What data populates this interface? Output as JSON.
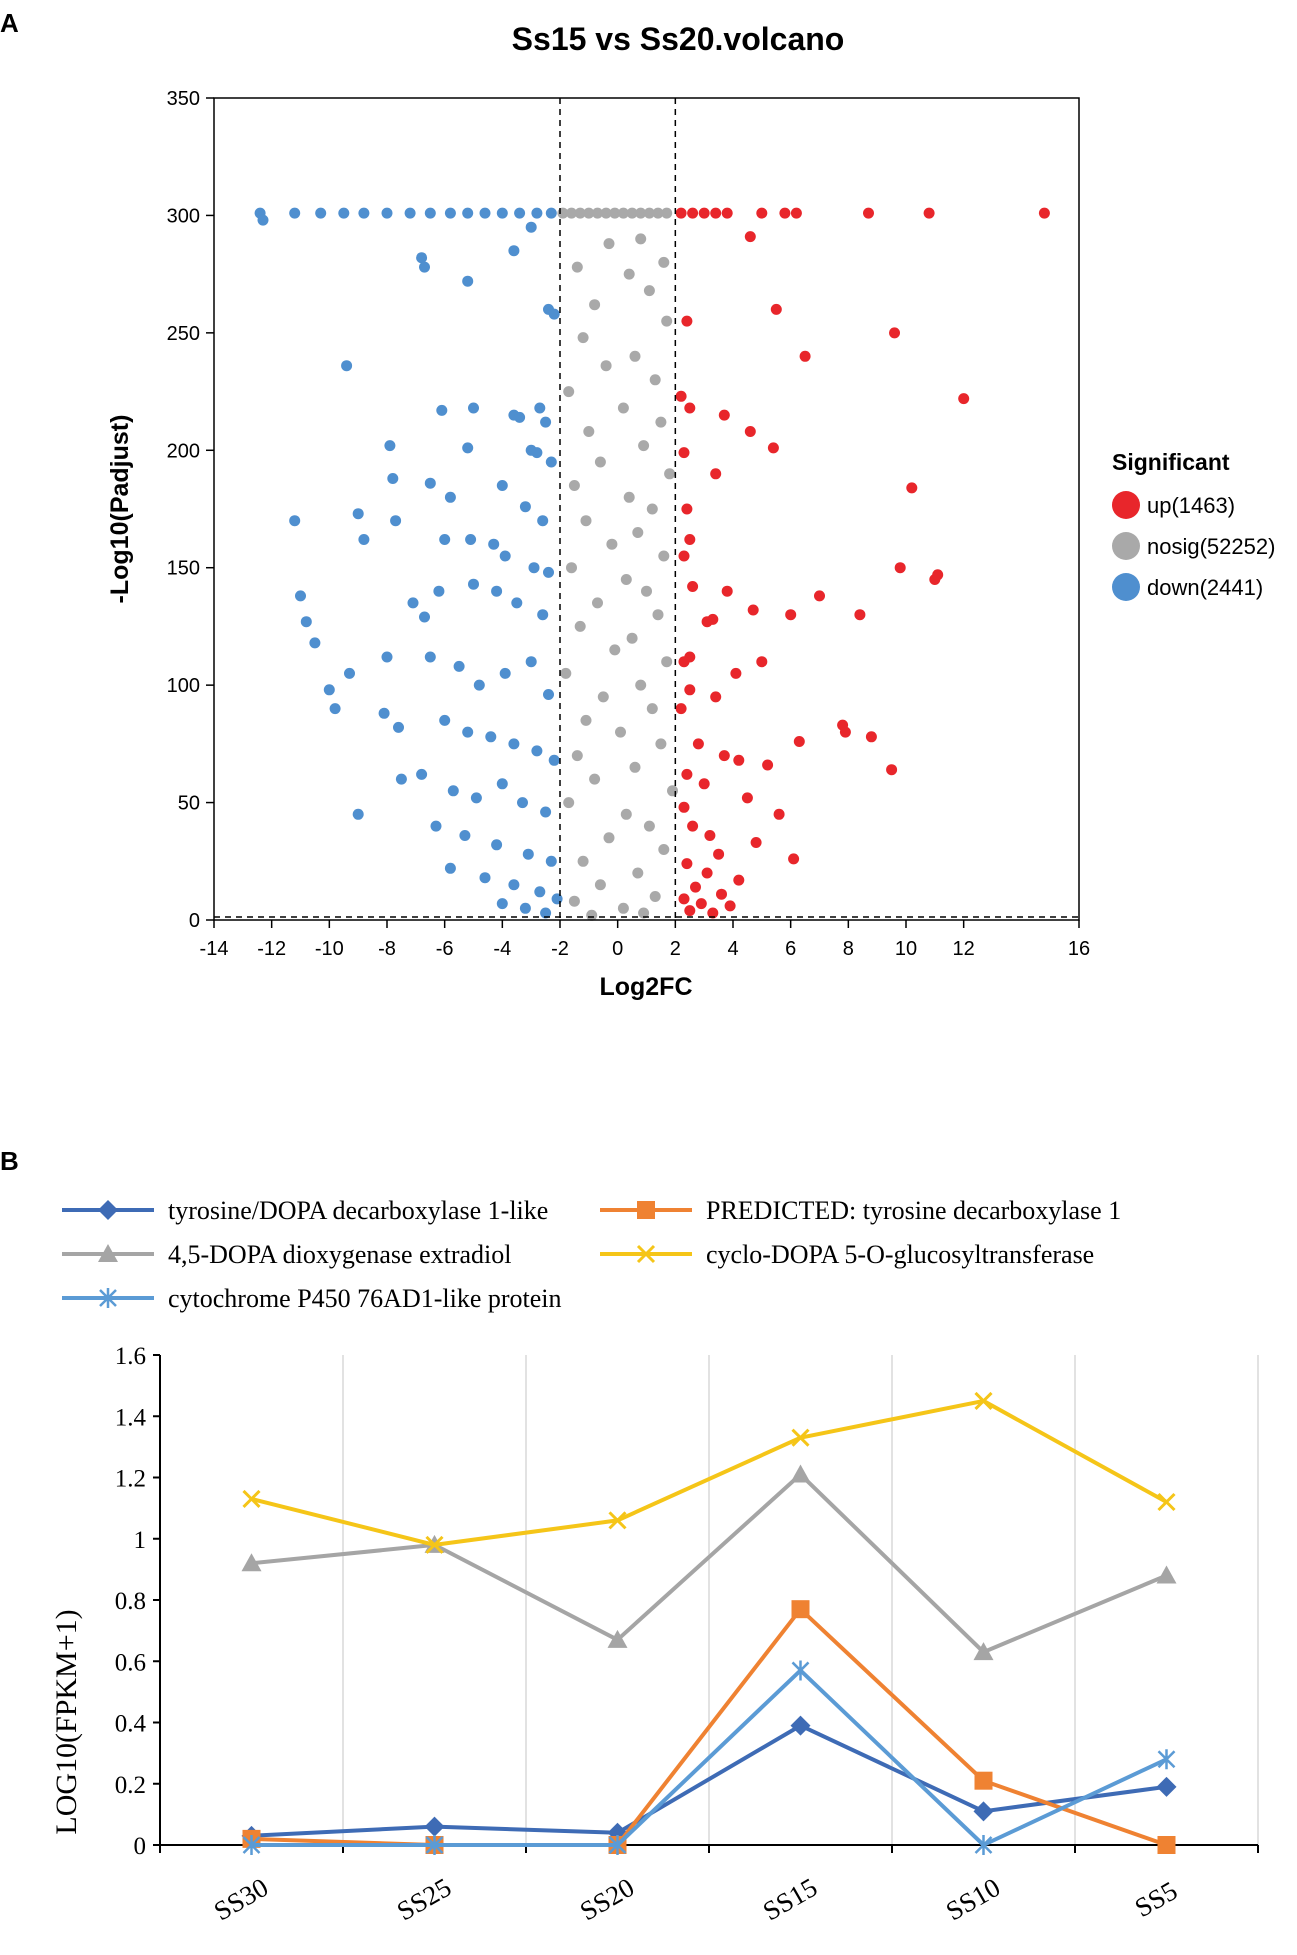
{
  "chart_data": [
    {
      "panel_label": "A",
      "type": "scatter",
      "title": "Ss15 vs Ss20.volcano",
      "xlabel": "Log2FC",
      "ylabel": "-Log10(Padjust)",
      "xlim": [
        -14,
        16
      ],
      "ylim": [
        0,
        350
      ],
      "xticks": [
        "-14",
        "-12",
        "-10",
        "-8",
        "-6",
        "-4",
        "-2",
        "0",
        "2",
        "4",
        "6",
        "8",
        "10",
        "12",
        "16"
      ],
      "yticks": [
        "0",
        "50",
        "100",
        "150",
        "200",
        "250",
        "300",
        "350"
      ],
      "thresholds": {
        "log2fc": [
          -2,
          2
        ],
        "neg_log10_padj": 1.3
      },
      "legend": {
        "title": "Significant",
        "items": [
          {
            "label": "up(1463)",
            "color": "#e8262b"
          },
          {
            "label": "nosig(52252)",
            "color": "#a9a9a9"
          },
          {
            "label": "down(2441)",
            "color": "#4f8fcf"
          }
        ]
      },
      "series": [
        {
          "name": "up",
          "color": "#e8262b",
          "points": [
            [
              2.2,
              301
            ],
            [
              2.6,
              301
            ],
            [
              3.0,
              301
            ],
            [
              3.4,
              301
            ],
            [
              3.8,
              301
            ],
            [
              5.0,
              301
            ],
            [
              5.8,
              301
            ],
            [
              6.2,
              301
            ],
            [
              8.7,
              301
            ],
            [
              10.8,
              301
            ],
            [
              14.8,
              301
            ],
            [
              4.6,
              291
            ],
            [
              5.5,
              260
            ],
            [
              2.4,
              255
            ],
            [
              6.5,
              240
            ],
            [
              9.6,
              250
            ],
            [
              12.0,
              222
            ],
            [
              2.2,
              223
            ],
            [
              2.5,
              218
            ],
            [
              3.7,
              215
            ],
            [
              4.6,
              208
            ],
            [
              5.4,
              201
            ],
            [
              2.3,
              199
            ],
            [
              3.4,
              190
            ],
            [
              10.2,
              184
            ],
            [
              2.4,
              175
            ],
            [
              2.5,
              162
            ],
            [
              2.3,
              155
            ],
            [
              9.8,
              150
            ],
            [
              11.0,
              145
            ],
            [
              11.1,
              147
            ],
            [
              2.6,
              142
            ],
            [
              3.8,
              140
            ],
            [
              7.0,
              138
            ],
            [
              4.7,
              132
            ],
            [
              3.3,
              128
            ],
            [
              3.1,
              127
            ],
            [
              6.0,
              130
            ],
            [
              8.4,
              130
            ],
            [
              2.5,
              112
            ],
            [
              2.3,
              110
            ],
            [
              5.0,
              110
            ],
            [
              4.1,
              105
            ],
            [
              2.5,
              98
            ],
            [
              3.4,
              95
            ],
            [
              2.2,
              90
            ],
            [
              7.8,
              83
            ],
            [
              7.9,
              80
            ],
            [
              8.8,
              78
            ],
            [
              6.3,
              76
            ],
            [
              2.8,
              75
            ],
            [
              3.7,
              70
            ],
            [
              4.2,
              68
            ],
            [
              5.2,
              66
            ],
            [
              9.5,
              64
            ],
            [
              2.4,
              62
            ],
            [
              3.0,
              58
            ],
            [
              4.5,
              52
            ],
            [
              2.3,
              48
            ],
            [
              5.6,
              45
            ],
            [
              2.6,
              40
            ],
            [
              3.2,
              36
            ],
            [
              4.8,
              33
            ],
            [
              3.5,
              28
            ],
            [
              6.1,
              26
            ],
            [
              2.4,
              24
            ],
            [
              3.1,
              20
            ],
            [
              4.2,
              17
            ],
            [
              2.7,
              14
            ],
            [
              3.6,
              11
            ],
            [
              2.3,
              9
            ],
            [
              2.9,
              7
            ],
            [
              3.9,
              6
            ],
            [
              2.5,
              4
            ],
            [
              3.3,
              3
            ]
          ]
        },
        {
          "name": "nosig",
          "color": "#a9a9a9",
          "points": [
            [
              -1.9,
              301
            ],
            [
              -1.6,
              301
            ],
            [
              -1.3,
              301
            ],
            [
              -1.0,
              301
            ],
            [
              -0.7,
              301
            ],
            [
              -0.4,
              301
            ],
            [
              -0.1,
              301
            ],
            [
              0.2,
              301
            ],
            [
              0.5,
              301
            ],
            [
              0.8,
              301
            ],
            [
              1.1,
              301
            ],
            [
              1.4,
              301
            ],
            [
              1.7,
              301
            ],
            [
              0.8,
              290
            ],
            [
              -0.3,
              288
            ],
            [
              1.6,
              280
            ],
            [
              -1.4,
              278
            ],
            [
              0.4,
              275
            ],
            [
              1.1,
              268
            ],
            [
              -0.8,
              262
            ],
            [
              1.7,
              255
            ],
            [
              -1.2,
              248
            ],
            [
              0.6,
              240
            ],
            [
              -0.4,
              236
            ],
            [
              1.3,
              230
            ],
            [
              -1.7,
              225
            ],
            [
              0.2,
              218
            ],
            [
              1.5,
              212
            ],
            [
              -1.0,
              208
            ],
            [
              0.9,
              202
            ],
            [
              -0.6,
              195
            ],
            [
              1.8,
              190
            ],
            [
              -1.5,
              185
            ],
            [
              0.4,
              180
            ],
            [
              1.2,
              175
            ],
            [
              -1.1,
              170
            ],
            [
              0.7,
              165
            ],
            [
              -0.2,
              160
            ],
            [
              1.6,
              155
            ],
            [
              -1.6,
              150
            ],
            [
              0.3,
              145
            ],
            [
              1.0,
              140
            ],
            [
              -0.7,
              135
            ],
            [
              1.4,
              130
            ],
            [
              -1.3,
              125
            ],
            [
              0.5,
              120
            ],
            [
              -0.1,
              115
            ],
            [
              1.7,
              110
            ],
            [
              -1.8,
              105
            ],
            [
              0.8,
              100
            ],
            [
              -0.5,
              95
            ],
            [
              1.2,
              90
            ],
            [
              -1.1,
              85
            ],
            [
              0.1,
              80
            ],
            [
              1.5,
              75
            ],
            [
              -1.4,
              70
            ],
            [
              0.6,
              65
            ],
            [
              -0.8,
              60
            ],
            [
              1.9,
              55
            ],
            [
              -1.7,
              50
            ],
            [
              0.3,
              45
            ],
            [
              1.1,
              40
            ],
            [
              -0.3,
              35
            ],
            [
              1.6,
              30
            ],
            [
              -1.2,
              25
            ],
            [
              0.7,
              20
            ],
            [
              -0.6,
              15
            ],
            [
              1.3,
              10
            ],
            [
              -1.5,
              8
            ],
            [
              0.2,
              5
            ],
            [
              0.9,
              3
            ],
            [
              -0.9,
              2
            ]
          ]
        },
        {
          "name": "down",
          "color": "#4f8fcf",
          "points": [
            [
              -12.4,
              301
            ],
            [
              -11.2,
              301
            ],
            [
              -10.3,
              301
            ],
            [
              -9.5,
              301
            ],
            [
              -8.8,
              301
            ],
            [
              -8.0,
              301
            ],
            [
              -7.2,
              301
            ],
            [
              -6.5,
              301
            ],
            [
              -5.8,
              301
            ],
            [
              -5.2,
              301
            ],
            [
              -4.6,
              301
            ],
            [
              -4.0,
              301
            ],
            [
              -3.4,
              301
            ],
            [
              -2.8,
              301
            ],
            [
              -2.3,
              301
            ],
            [
              -12.3,
              298
            ],
            [
              -3.0,
              295
            ],
            [
              -6.8,
              282
            ],
            [
              -6.7,
              278
            ],
            [
              -5.2,
              272
            ],
            [
              -3.6,
              285
            ],
            [
              -2.4,
              260
            ],
            [
              -2.2,
              258
            ],
            [
              -9.4,
              236
            ],
            [
              -6.1,
              217
            ],
            [
              -5.0,
              218
            ],
            [
              -3.6,
              215
            ],
            [
              -3.4,
              214
            ],
            [
              -2.7,
              218
            ],
            [
              -2.5,
              212
            ],
            [
              -7.9,
              202
            ],
            [
              -5.2,
              201
            ],
            [
              -3.0,
              200
            ],
            [
              -2.8,
              199
            ],
            [
              -2.3,
              195
            ],
            [
              -7.8,
              188
            ],
            [
              -6.5,
              186
            ],
            [
              -5.8,
              180
            ],
            [
              -4.0,
              185
            ],
            [
              -3.2,
              176
            ],
            [
              -2.6,
              170
            ],
            [
              -11.2,
              170
            ],
            [
              -9.0,
              173
            ],
            [
              -8.8,
              162
            ],
            [
              -7.7,
              170
            ],
            [
              -6.0,
              162
            ],
            [
              -5.1,
              162
            ],
            [
              -4.3,
              160
            ],
            [
              -3.9,
              155
            ],
            [
              -2.9,
              150
            ],
            [
              -2.4,
              148
            ],
            [
              -11.0,
              138
            ],
            [
              -10.8,
              127
            ],
            [
              -7.1,
              135
            ],
            [
              -6.7,
              129
            ],
            [
              -6.2,
              140
            ],
            [
              -5.0,
              143
            ],
            [
              -4.2,
              140
            ],
            [
              -3.5,
              135
            ],
            [
              -2.6,
              130
            ],
            [
              -10.5,
              118
            ],
            [
              -9.3,
              105
            ],
            [
              -8.0,
              112
            ],
            [
              -6.5,
              112
            ],
            [
              -5.5,
              108
            ],
            [
              -4.8,
              100
            ],
            [
              -3.9,
              105
            ],
            [
              -3.0,
              110
            ],
            [
              -2.4,
              96
            ],
            [
              -10.0,
              98
            ],
            [
              -9.8,
              90
            ],
            [
              -8.1,
              88
            ],
            [
              -7.6,
              82
            ],
            [
              -6.0,
              85
            ],
            [
              -5.2,
              80
            ],
            [
              -4.4,
              78
            ],
            [
              -3.6,
              75
            ],
            [
              -2.8,
              72
            ],
            [
              -2.2,
              68
            ],
            [
              -7.5,
              60
            ],
            [
              -6.8,
              62
            ],
            [
              -5.7,
              55
            ],
            [
              -4.9,
              52
            ],
            [
              -4.0,
              58
            ],
            [
              -3.3,
              50
            ],
            [
              -2.5,
              46
            ],
            [
              -9.0,
              45
            ],
            [
              -6.3,
              40
            ],
            [
              -5.3,
              36
            ],
            [
              -4.2,
              32
            ],
            [
              -3.1,
              28
            ],
            [
              -2.3,
              25
            ],
            [
              -5.8,
              22
            ],
            [
              -4.6,
              18
            ],
            [
              -3.6,
              15
            ],
            [
              -2.7,
              12
            ],
            [
              -2.1,
              9
            ],
            [
              -4.0,
              7
            ],
            [
              -3.2,
              5
            ],
            [
              -2.5,
              3
            ]
          ]
        }
      ]
    },
    {
      "panel_label": "B",
      "type": "line",
      "title": "",
      "xlabel": "",
      "ylabel": "LOG10(FPKM+1)",
      "ylim": [
        0,
        1.6
      ],
      "yticks": [
        "0",
        "0.2",
        "0.4",
        "0.6",
        "0.8",
        "1",
        "1.2",
        "1.4",
        "1.6"
      ],
      "categories": [
        "SS30",
        "SS25",
        "SS20",
        "SS15",
        "SS10",
        "SS5"
      ],
      "series": [
        {
          "name": "tyrosine/DOPA decarboxylase 1-like",
          "color": "#3e6bb5",
          "marker": "diamond",
          "values": [
            0.03,
            0.06,
            0.04,
            0.39,
            0.11,
            0.19
          ]
        },
        {
          "name": "PREDICTED: tyrosine decarboxylase 1",
          "color": "#ef8232",
          "marker": "square",
          "values": [
            0.02,
            0.0,
            0.0,
            0.77,
            0.21,
            0.0
          ]
        },
        {
          "name": "4,5-DOPA dioxygenase extradiol",
          "color": "#a5a5a5",
          "marker": "triangle",
          "values": [
            0.92,
            0.98,
            0.67,
            1.21,
            0.63,
            0.88
          ]
        },
        {
          "name": "cyclo-DOPA 5-O-glucosyltransferase",
          "color": "#f5c518",
          "marker": "x",
          "values": [
            1.13,
            0.98,
            1.06,
            1.33,
            1.45,
            1.12
          ]
        },
        {
          "name": "cytochrome P450 76AD1-like protein",
          "color": "#5b9bd5",
          "marker": "asterisk",
          "values": [
            0.0,
            0.0,
            0.0,
            0.57,
            0.0,
            0.28
          ]
        }
      ]
    }
  ]
}
